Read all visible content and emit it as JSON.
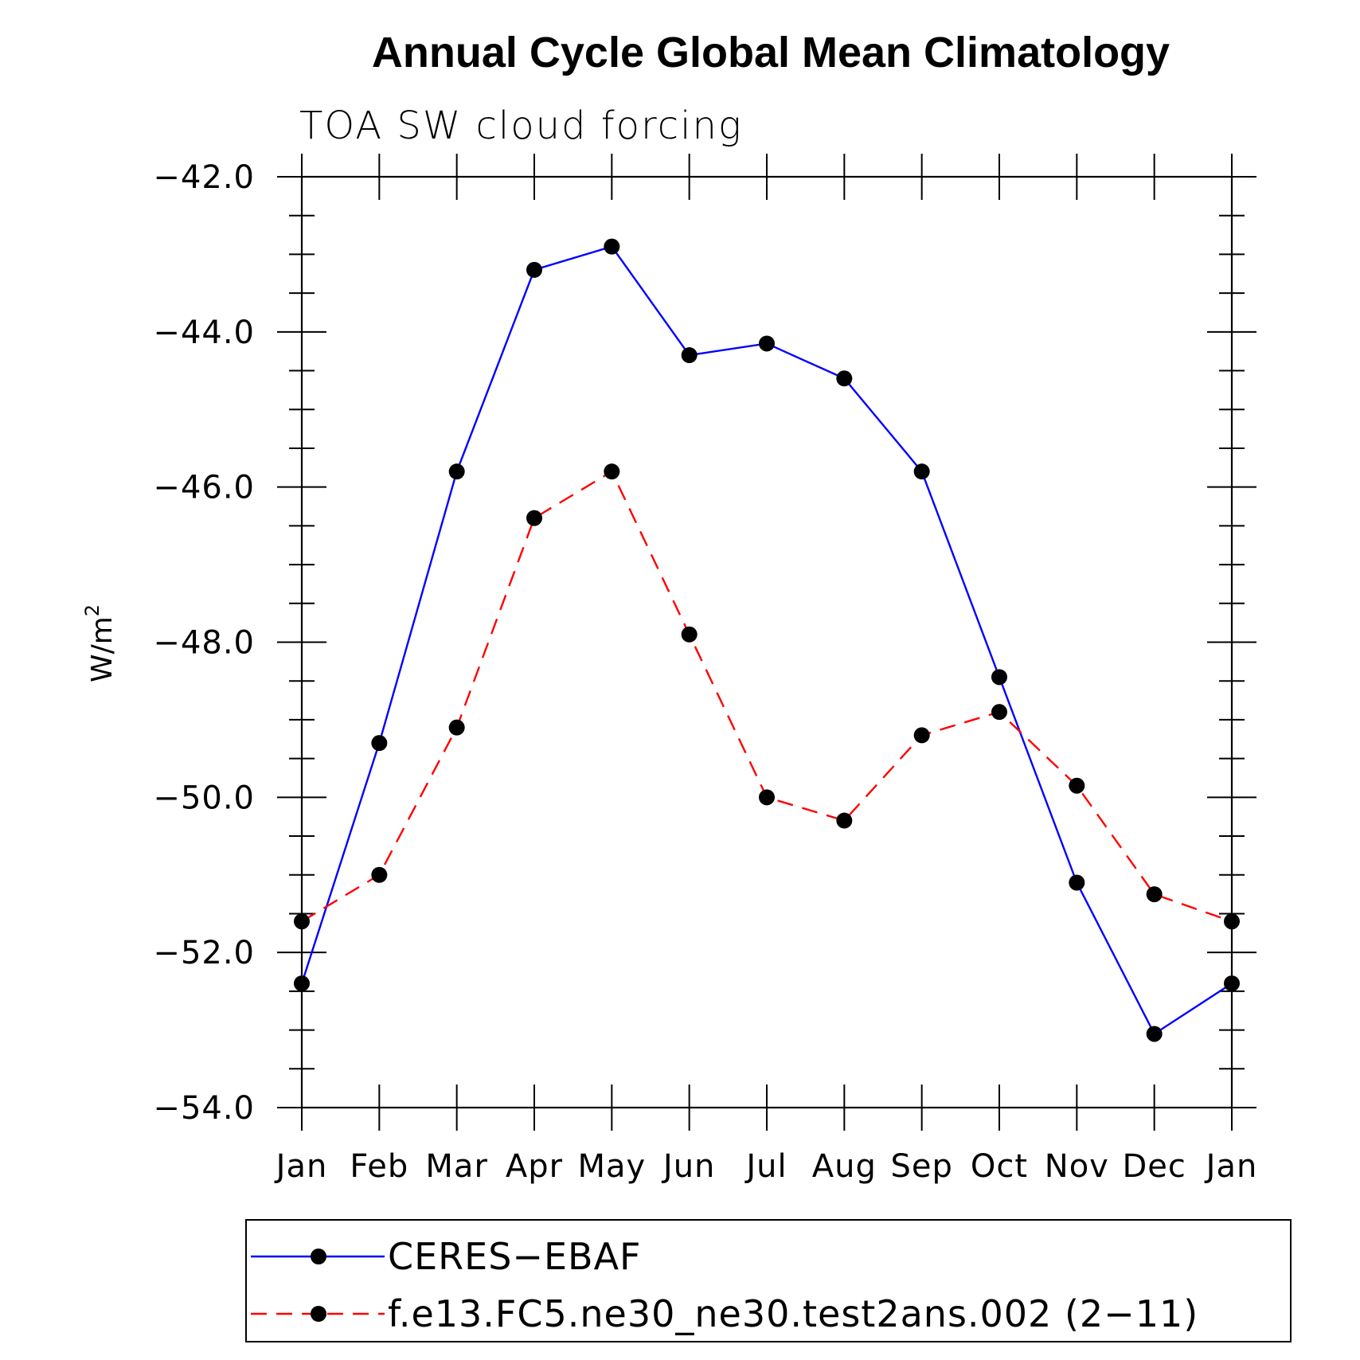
{
  "chart_data": {
    "type": "line",
    "title": "Annual Cycle Global Mean Climatology",
    "subtitle": "TOA SW cloud forcing",
    "ylabel": "W/m",
    "ylabel_sup": "2",
    "xlabel": "",
    "categories": [
      "Jan",
      "Feb",
      "Mar",
      "Apr",
      "May",
      "Jun",
      "Jul",
      "Aug",
      "Sep",
      "Oct",
      "Nov",
      "Dec",
      "Jan"
    ],
    "ylim": [
      -54.0,
      -42.0
    ],
    "yticks": [
      -42.0,
      -44.0,
      -46.0,
      -48.0,
      -50.0,
      -52.0,
      -54.0
    ],
    "ytick_labels": [
      "−42.0",
      "−44.0",
      "−46.0",
      "−48.0",
      "−50.0",
      "−52.0",
      "−54.0"
    ],
    "series": [
      {
        "name": "CERES−EBAF",
        "color": "#0000ff",
        "dash": "solid",
        "values": [
          -52.4,
          -49.3,
          -45.8,
          -43.2,
          -42.9,
          -44.3,
          -44.15,
          -44.6,
          -45.8,
          -48.45,
          -51.1,
          -53.05,
          -52.4
        ]
      },
      {
        "name": "f.e13.FC5.ne30_ne30.test2ans.002 (2−11)",
        "color": "#ff0000",
        "dash": "dashed",
        "values": [
          -51.6,
          -51.0,
          -49.1,
          -46.4,
          -45.8,
          -47.9,
          -50.0,
          -50.3,
          -49.2,
          -48.9,
          -49.85,
          -51.25,
          -51.6
        ]
      }
    ],
    "marker_color": "#000000",
    "grid": false,
    "legend_position": "bottom"
  }
}
